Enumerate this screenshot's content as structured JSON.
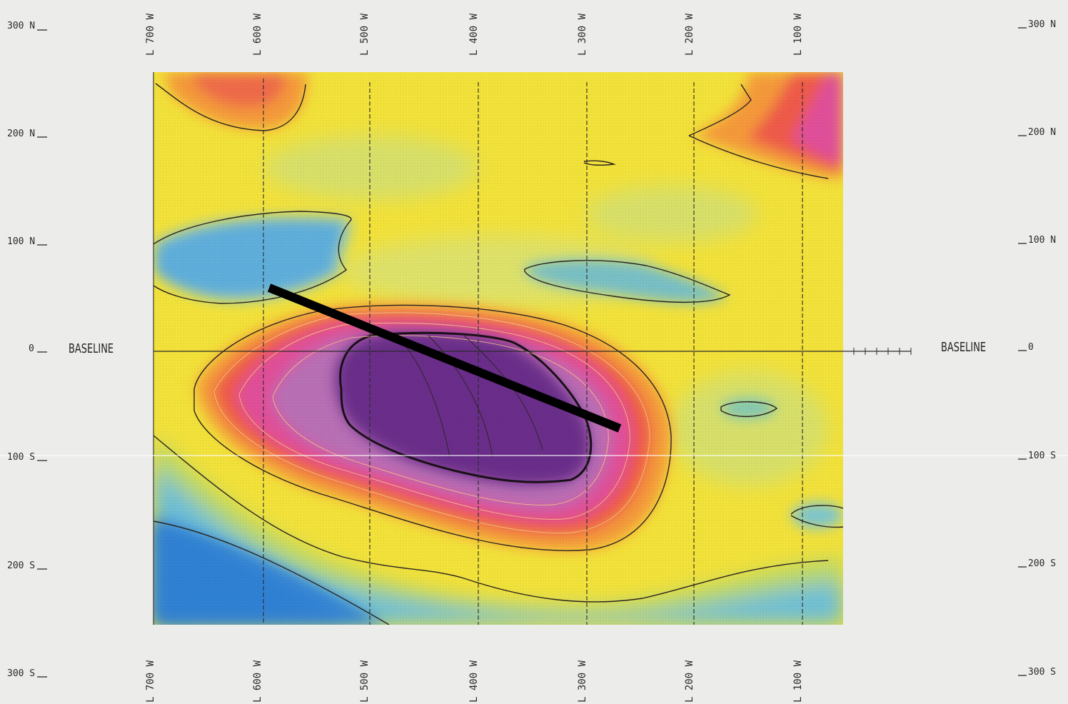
{
  "grid": {
    "lines_top": [
      "L 700 W",
      "L 600 W",
      "L 500 W",
      "L 400 W",
      "L 300 W",
      "L 200 W",
      "L 100 W"
    ],
    "lines_bottom": [
      "L 700 W",
      "L 600 W",
      "L 500 W",
      "L 400 W",
      "L 300 W",
      "L 200 W",
      "L 100 W"
    ],
    "stations_left": [
      "300 N",
      "200 N",
      "100 N",
      "0",
      "100 S",
      "200 S",
      "300 S"
    ],
    "stations_right": [
      "300 N",
      "200 N",
      "100 N",
      "0",
      "100 S",
      "200 S",
      "300 S"
    ]
  },
  "baseline": {
    "left_label": "BASELINE",
    "right_label": "BASELINE"
  },
  "colors": {
    "background": "#ececea",
    "high_core": "#6a2f8a",
    "magenta": "#e0509a",
    "red": "#ef5a4a",
    "orange": "#f59a3a",
    "yellow": "#f3e23a",
    "light_green": "#b9d76a",
    "cyan": "#5fb8d8",
    "blue": "#2f86d6",
    "section_line": "#000000"
  },
  "features": {
    "section_line": "black interpretive section line crossing main anomaly",
    "main_anomaly": "high anomaly centered near L 400 W south of baseline"
  }
}
